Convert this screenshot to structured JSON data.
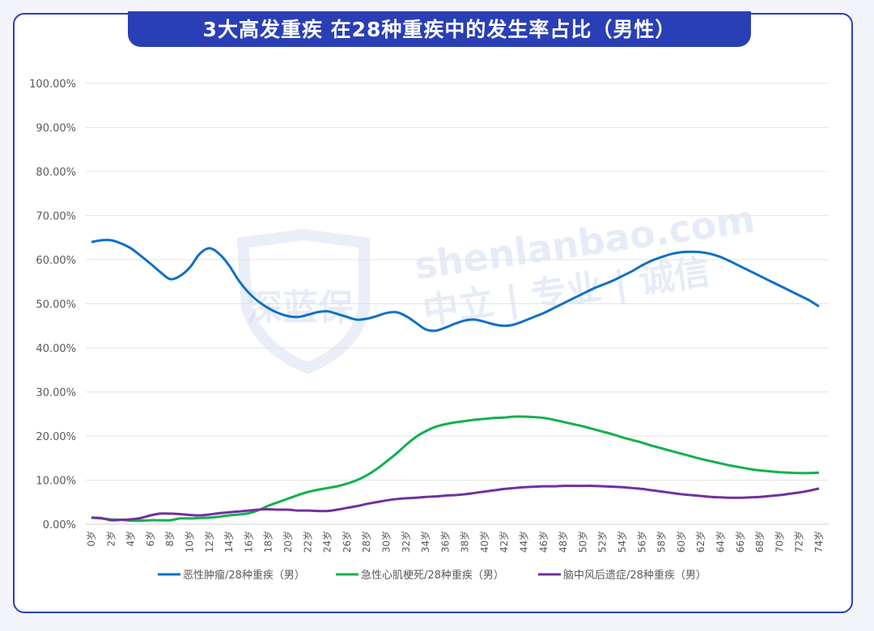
{
  "chart_data": {
    "type": "line",
    "title": "3大高发重疾 在28种重疾中的发生率占比（男性）",
    "xlabel": "",
    "ylabel": "",
    "ylim": [
      0,
      100
    ],
    "yticks": [
      "0.00%",
      "10.00%",
      "20.00%",
      "30.00%",
      "40.00%",
      "50.00%",
      "60.00%",
      "70.00%",
      "80.00%",
      "90.00%",
      "100.00%"
    ],
    "x": [
      0,
      1,
      2,
      3,
      4,
      5,
      6,
      7,
      8,
      9,
      10,
      11,
      12,
      13,
      14,
      15,
      16,
      17,
      18,
      19,
      20,
      21,
      22,
      23,
      24,
      25,
      26,
      27,
      28,
      29,
      30,
      31,
      32,
      33,
      34,
      35,
      36,
      37,
      38,
      39,
      40,
      41,
      42,
      43,
      44,
      45,
      46,
      47,
      48,
      49,
      50,
      51,
      52,
      53,
      54,
      55,
      56,
      57,
      58,
      59,
      60,
      61,
      62,
      63,
      64,
      65,
      66,
      67,
      68,
      69,
      70,
      71,
      72,
      73,
      74
    ],
    "xtick_labels": [
      "0岁",
      "2岁",
      "4岁",
      "6岁",
      "8岁",
      "10岁",
      "12岁",
      "14岁",
      "16岁",
      "18岁",
      "20岁",
      "22岁",
      "24岁",
      "26岁",
      "28岁",
      "30岁",
      "32岁",
      "34岁",
      "36岁",
      "38岁",
      "40岁",
      "42岁",
      "44岁",
      "46岁",
      "48岁",
      "50岁",
      "52岁",
      "54岁",
      "56岁",
      "58岁",
      "60岁",
      "62岁",
      "64岁",
      "66岁",
      "68岁",
      "70岁",
      "72岁",
      "74岁"
    ],
    "grid": true,
    "legend_position": "bottom",
    "series": [
      {
        "name": "恶性肿瘤/28种重疾（男）",
        "color": "#1070c4",
        "values": [
          64.0,
          64.4,
          64.4,
          63.7,
          62.6,
          60.9,
          59.1,
          57.2,
          55.6,
          56.3,
          58.2,
          61.3,
          62.6,
          61.3,
          58.7,
          55.2,
          52.5,
          50.5,
          49.0,
          47.9,
          47.2,
          47.0,
          47.5,
          48.1,
          48.3,
          47.7,
          47.0,
          46.4,
          46.6,
          47.2,
          47.9,
          48.1,
          47.2,
          45.7,
          44.2,
          43.9,
          44.6,
          45.5,
          46.2,
          46.4,
          45.9,
          45.3,
          45.0,
          45.3,
          46.1,
          47.0,
          47.9,
          49.0,
          50.1,
          51.2,
          52.3,
          53.4,
          54.3,
          55.2,
          56.3,
          57.4,
          58.7,
          59.8,
          60.6,
          61.3,
          61.7,
          61.8,
          61.7,
          61.3,
          60.6,
          59.6,
          58.5,
          57.4,
          56.3,
          55.2,
          54.1,
          53.0,
          51.9,
          50.8,
          49.4
        ]
      },
      {
        "name": "急性心肌梗死/28种重疾（男）",
        "color": "#12b04f",
        "values": [
          1.5,
          1.3,
          1.1,
          1.0,
          0.8,
          0.8,
          0.9,
          0.9,
          0.9,
          1.3,
          1.3,
          1.4,
          1.5,
          1.7,
          2.0,
          2.2,
          2.5,
          3.2,
          4.2,
          5.0,
          5.8,
          6.6,
          7.3,
          7.8,
          8.2,
          8.6,
          9.2,
          10.0,
          11.1,
          12.5,
          14.2,
          16.0,
          18.0,
          19.8,
          21.1,
          22.1,
          22.7,
          23.1,
          23.4,
          23.7,
          23.9,
          24.1,
          24.2,
          24.4,
          24.4,
          24.3,
          24.1,
          23.7,
          23.2,
          22.7,
          22.2,
          21.6,
          21.0,
          20.4,
          19.7,
          19.1,
          18.5,
          17.8,
          17.2,
          16.6,
          16.0,
          15.4,
          14.8,
          14.3,
          13.8,
          13.3,
          12.9,
          12.5,
          12.2,
          12.0,
          11.8,
          11.7,
          11.6,
          11.6,
          11.7
        ]
      },
      {
        "name": "脑中风后遗症/28种重疾（男）",
        "color": "#7030a0",
        "values": [
          1.5,
          1.4,
          0.9,
          1.0,
          1.1,
          1.4,
          2.0,
          2.4,
          2.4,
          2.3,
          2.1,
          2.0,
          2.2,
          2.5,
          2.7,
          2.9,
          3.1,
          3.3,
          3.4,
          3.3,
          3.3,
          3.1,
          3.1,
          3.0,
          3.0,
          3.3,
          3.7,
          4.1,
          4.6,
          5.0,
          5.4,
          5.7,
          5.9,
          6.0,
          6.2,
          6.3,
          6.5,
          6.6,
          6.8,
          7.1,
          7.4,
          7.7,
          8.0,
          8.2,
          8.4,
          8.5,
          8.6,
          8.6,
          8.7,
          8.7,
          8.7,
          8.7,
          8.6,
          8.5,
          8.4,
          8.2,
          8.0,
          7.7,
          7.4,
          7.1,
          6.8,
          6.6,
          6.4,
          6.2,
          6.1,
          6.0,
          6.0,
          6.1,
          6.2,
          6.4,
          6.6,
          6.9,
          7.2,
          7.6,
          8.1
        ]
      }
    ]
  },
  "watermark": {
    "logo": "深蓝保",
    "site": "shenlanbao.com",
    "slogan": "中立 | 专业 | 诚信"
  }
}
